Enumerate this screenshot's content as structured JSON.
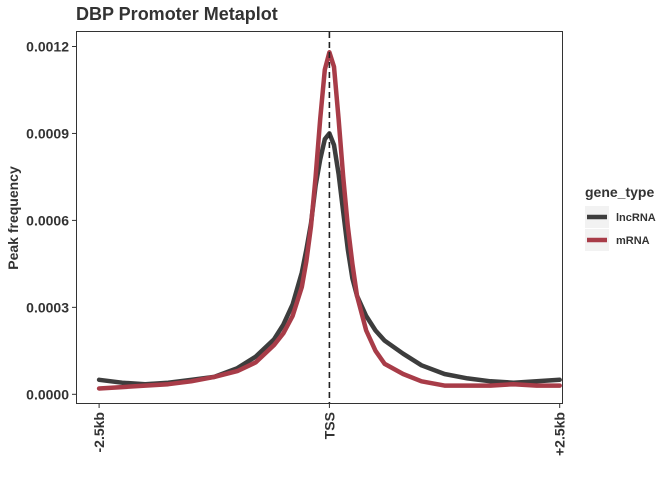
{
  "chart_data": {
    "type": "line",
    "title": "DBP Promoter Metaplot",
    "xlabel": "",
    "ylabel": "Peak frequency",
    "x_ticks": [
      "-2.5kb",
      "TSS",
      "+2.5kb"
    ],
    "x_tick_positions": [
      -2500,
      0,
      2500
    ],
    "y_ticks": [
      "0.0000",
      "0.0003",
      "0.0006",
      "0.0009",
      "0.0012"
    ],
    "ylim": [
      -3e-05,
      0.00125
    ],
    "xlim": [
      -2740,
      2525
    ],
    "vline": {
      "x": 0,
      "style": "dashed"
    },
    "grid": false,
    "legend": {
      "title": "gene_type",
      "position": "right"
    },
    "x": [
      -2500,
      -2250,
      -2000,
      -1750,
      -1500,
      -1250,
      -1000,
      -800,
      -600,
      -500,
      -400,
      -300,
      -250,
      -200,
      -150,
      -100,
      -50,
      0,
      50,
      100,
      150,
      200,
      250,
      300,
      400,
      500,
      600,
      800,
      1000,
      1250,
      1500,
      1750,
      2000,
      2250,
      2500
    ],
    "series": [
      {
        "name": "lncRNA",
        "color": "#3d3d3d",
        "values": [
          5e-05,
          4e-05,
          3.5e-05,
          4e-05,
          5e-05,
          6e-05,
          9e-05,
          0.00013,
          0.00019,
          0.00024,
          0.00031,
          0.00042,
          0.0005,
          0.00059,
          0.00072,
          0.00081,
          0.00088,
          0.0009,
          0.00086,
          0.00076,
          0.00063,
          0.0005,
          0.0004,
          0.00034,
          0.00027,
          0.00022,
          0.000185,
          0.00014,
          0.0001,
          7e-05,
          5.5e-05,
          4.5e-05,
          4e-05,
          4.5e-05,
          5e-05
        ]
      },
      {
        "name": "mRNA",
        "color": "#a83c48",
        "values": [
          2e-05,
          2.5e-05,
          3e-05,
          3.5e-05,
          4.5e-05,
          6e-05,
          8e-05,
          0.00011,
          0.00017,
          0.00021,
          0.00027,
          0.00037,
          0.00046,
          0.00058,
          0.00075,
          0.00095,
          0.00112,
          0.00118,
          0.00113,
          0.00095,
          0.00075,
          0.00058,
          0.00045,
          0.00034,
          0.00022,
          0.00015,
          0.000105,
          7e-05,
          4.5e-05,
          3e-05,
          3e-05,
          3e-05,
          3.5e-05,
          3e-05,
          3e-05
        ]
      }
    ]
  }
}
